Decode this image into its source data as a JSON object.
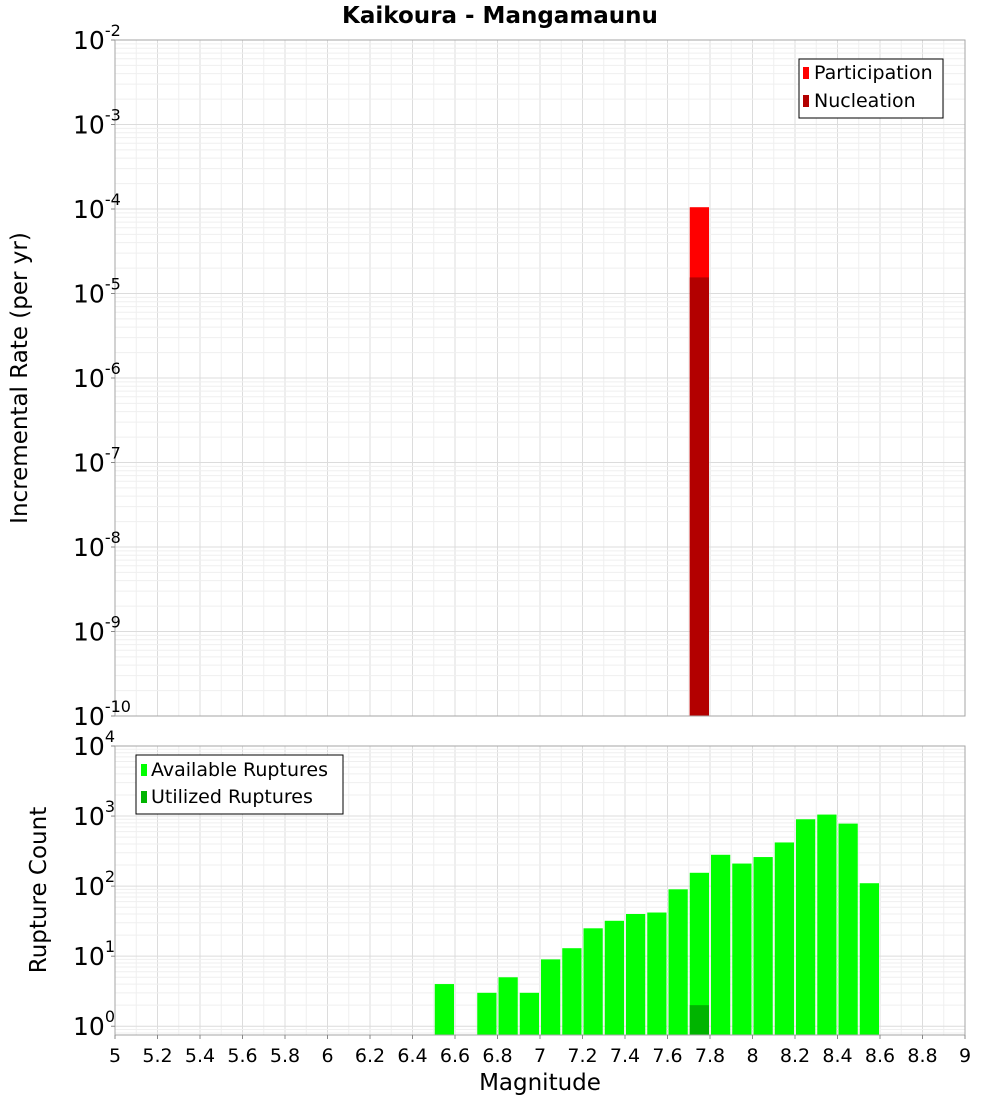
{
  "chart_data": [
    {
      "type": "bar",
      "title": "Kaikoura - Mangamaunu",
      "ylabel": "Incremental Rate (per yr)",
      "xlabel": "",
      "yscale": "log",
      "ylim": [
        1e-10,
        0.01
      ],
      "xlim": [
        5,
        9
      ],
      "bin_width": 0.1,
      "y_ticks": [
        {
          "base": "10",
          "exp": "-10",
          "value": 1e-10
        },
        {
          "base": "10",
          "exp": "-9",
          "value": 1e-09
        },
        {
          "base": "10",
          "exp": "-8",
          "value": 1e-08
        },
        {
          "base": "10",
          "exp": "-7",
          "value": 1e-07
        },
        {
          "base": "10",
          "exp": "-6",
          "value": 1e-06
        },
        {
          "base": "10",
          "exp": "-5",
          "value": 1e-05
        },
        {
          "base": "10",
          "exp": "-4",
          "value": 0.0001
        },
        {
          "base": "10",
          "exp": "-3",
          "value": 0.001
        },
        {
          "base": "10",
          "exp": "-2",
          "value": 0.01
        }
      ],
      "legend": {
        "position": "top-right"
      },
      "grid": true,
      "series": [
        {
          "name": "Participation",
          "color": "#ff0000",
          "x": [
            7.75
          ],
          "values": [
            0.000105
          ]
        },
        {
          "name": "Nucleation",
          "color": "#b30000",
          "x": [
            7.75
          ],
          "values": [
            1.55e-05
          ]
        }
      ]
    },
    {
      "type": "bar",
      "title": "",
      "ylabel": "Rupture Count",
      "xlabel": "Magnitude",
      "yscale": "log",
      "ylim": [
        0.75,
        10000
      ],
      "xlim": [
        5,
        9
      ],
      "bin_width": 0.1,
      "y_ticks": [
        {
          "base": "10",
          "exp": "0",
          "value": 1
        },
        {
          "base": "10",
          "exp": "1",
          "value": 10
        },
        {
          "base": "10",
          "exp": "2",
          "value": 100
        },
        {
          "base": "10",
          "exp": "3",
          "value": 1000
        },
        {
          "base": "10",
          "exp": "4",
          "value": 10000
        }
      ],
      "x_ticks": [
        "5",
        "5.2",
        "5.4",
        "5.6",
        "5.8",
        "6",
        "6.2",
        "6.4",
        "6.6",
        "6.8",
        "7",
        "7.2",
        "7.4",
        "7.6",
        "7.8",
        "8",
        "8.2",
        "8.4",
        "8.6",
        "8.8",
        "9"
      ],
      "legend": {
        "position": "top-left"
      },
      "grid": true,
      "series": [
        {
          "name": "Available Ruptures",
          "color": "#00ff00",
          "x": [
            6.55,
            6.75,
            6.85,
            6.95,
            7.05,
            7.15,
            7.25,
            7.35,
            7.45,
            7.55,
            7.65,
            7.75,
            7.85,
            7.95,
            8.05,
            8.15,
            8.25,
            8.35,
            8.45,
            8.55
          ],
          "values": [
            4,
            3,
            5,
            3,
            9,
            13,
            25,
            32,
            40,
            42,
            90,
            155,
            280,
            210,
            260,
            420,
            900,
            1050,
            780,
            110
          ]
        },
        {
          "name": "Utilized Ruptures",
          "color": "#00b400",
          "x": [
            7.75
          ],
          "values": [
            2
          ]
        }
      ]
    }
  ]
}
